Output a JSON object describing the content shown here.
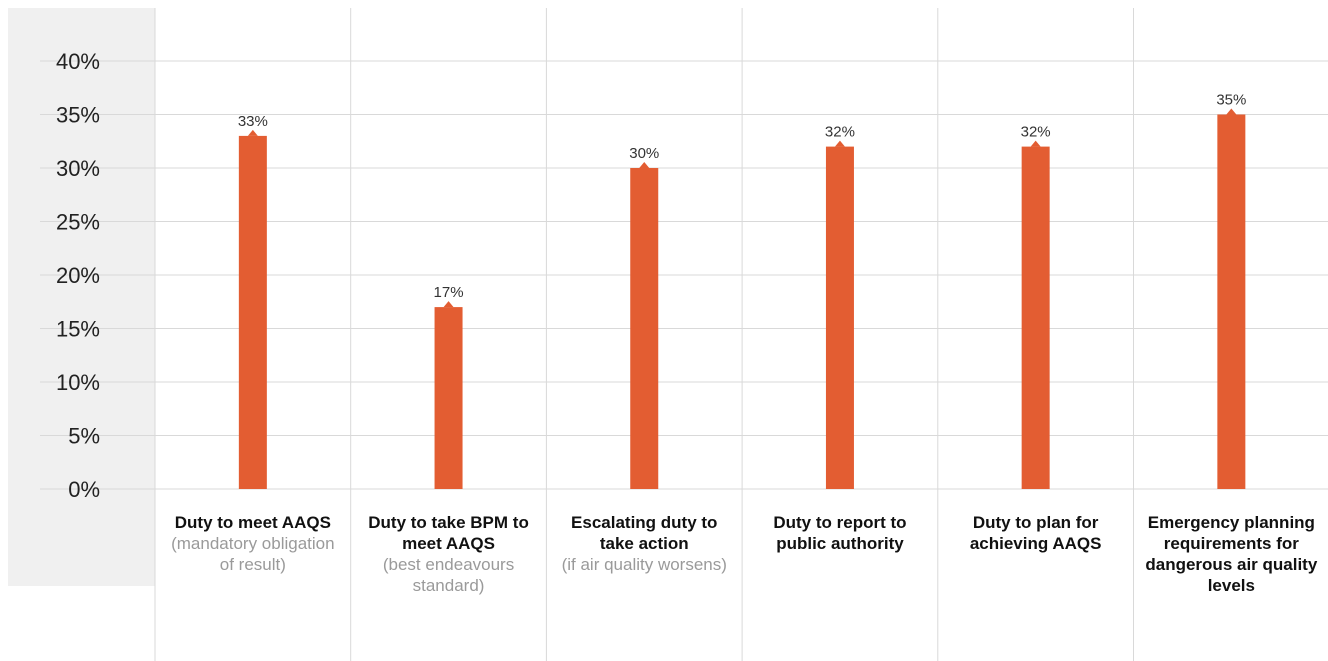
{
  "colors": {
    "bar": "#E35D32",
    "grid": "#d9d9d9",
    "panel": "#f0f0f0",
    "axis_text": "#222222",
    "label_text": "#333333"
  },
  "chart_data": {
    "type": "bar",
    "title": "",
    "xlabel": "",
    "ylabel": "",
    "ylim": [
      0,
      40
    ],
    "y_ticks": [
      "0%",
      "5%",
      "10%",
      "15%",
      "20%",
      "25%",
      "30%",
      "35%",
      "40%"
    ],
    "grid": true,
    "legend": "none",
    "categories": [
      {
        "main": "Duty to meet AAQS",
        "sub": "(mandatory obligation of result)"
      },
      {
        "main": "Duty to take BPM to meet AAQS",
        "sub": "(best endeavours standard)"
      },
      {
        "main": "Escalating duty to take action",
        "sub": "(if air quality worsens)"
      },
      {
        "main": "Duty to report to public authority",
        "sub": ""
      },
      {
        "main": "Duty to plan for achieving AAQS",
        "sub": ""
      },
      {
        "main": "Emergency planning requirements for dangerous air quality levels",
        "sub": ""
      }
    ],
    "values": [
      33,
      17,
      30,
      32,
      32,
      35
    ],
    "value_labels": [
      "33%",
      "17%",
      "30%",
      "32%",
      "32%",
      "35%"
    ]
  }
}
